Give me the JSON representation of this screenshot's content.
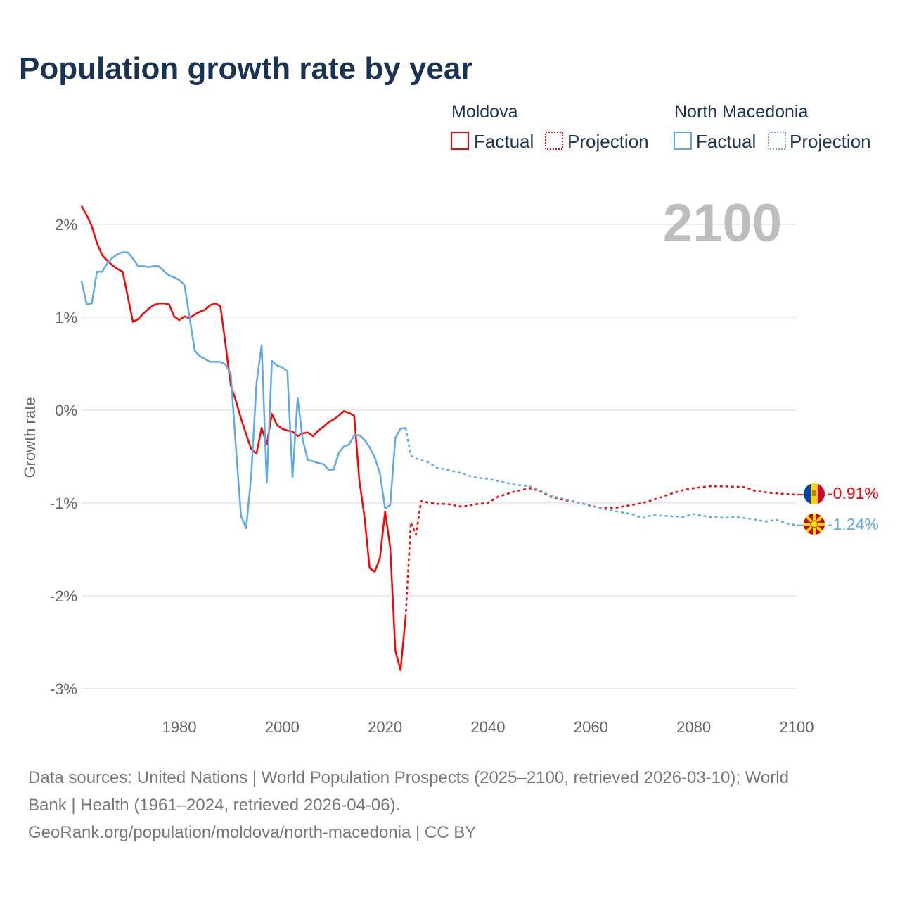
{
  "title": "Population growth rate by year",
  "legend": {
    "groups": [
      {
        "country": "Moldova",
        "factual": "Factual",
        "projection": "Projection",
        "color": "#ff0000"
      },
      {
        "country": "North Macedonia",
        "factual": "Factual",
        "projection": "Projection",
        "color": "#5ea8ec"
      }
    ]
  },
  "year_display": "2100",
  "footer": {
    "line1": "Data sources: United Nations | World Population Prospects (2025–2100, retrieved 2026-03-10); World",
    "line2": "Bank | Health (1961–2024, retrieved 2026-04-06).",
    "line3": "GeoRank.org/population/moldova/north-macedonia | CC BY"
  },
  "chart_data": {
    "type": "line",
    "title": "Population growth rate by year",
    "xlabel": "",
    "ylabel": "Growth rate",
    "xlim": [
      1961,
      2100
    ],
    "ylim": [
      -3.2,
      2.3
    ],
    "x_ticks": [
      1980,
      2000,
      2020,
      2040,
      2060,
      2080,
      2100
    ],
    "x_tick_labels": [
      "1980",
      "2000",
      "2020",
      "2040",
      "2060",
      "2080",
      "2100"
    ],
    "y_ticks": [
      2,
      1,
      0,
      -1,
      -2,
      -3
    ],
    "y_tick_labels": [
      "2%",
      "1%",
      "0%",
      "-1%",
      "-2%",
      "-3%"
    ],
    "grid": true,
    "legend_position": "top-right",
    "series": [
      {
        "name": "Moldova",
        "color": "#ff0000",
        "end_label": "-0.91%",
        "factual": {
          "x": [
            1961,
            1962,
            1963,
            1964,
            1965,
            1966,
            1967,
            1968,
            1969,
            1970,
            1971,
            1972,
            1973,
            1974,
            1975,
            1976,
            1977,
            1978,
            1979,
            1980,
            1981,
            1982,
            1983,
            1984,
            1985,
            1986,
            1987,
            1988,
            1989,
            1990,
            1991,
            1992,
            1993,
            1994,
            1995,
            1996,
            1997,
            1998,
            1999,
            2000,
            2001,
            2002,
            2003,
            2004,
            2005,
            2006,
            2007,
            2008,
            2009,
            2010,
            2011,
            2012,
            2013,
            2014,
            2015,
            2016,
            2017,
            2018,
            2019,
            2020,
            2021,
            2022,
            2023,
            2024
          ],
          "y": [
            2.2,
            2.1,
            1.98,
            1.8,
            1.67,
            1.61,
            1.56,
            1.52,
            1.49,
            1.22,
            0.95,
            0.98,
            1.04,
            1.09,
            1.13,
            1.15,
            1.15,
            1.14,
            1.01,
            0.97,
            1.01,
            0.99,
            1.03,
            1.06,
            1.08,
            1.13,
            1.15,
            1.12,
            0.7,
            0.27,
            0.1,
            -0.09,
            -0.26,
            -0.42,
            -0.47,
            -0.19,
            -0.37,
            -0.04,
            -0.16,
            -0.2,
            -0.22,
            -0.23,
            -0.28,
            -0.25,
            -0.24,
            -0.28,
            -0.22,
            -0.18,
            -0.13,
            -0.1,
            -0.06,
            -0.01,
            -0.03,
            -0.06,
            -0.76,
            -1.15,
            -1.7,
            -1.74,
            -1.59,
            -1.09,
            -1.48,
            -2.59,
            -2.8,
            -2.23
          ]
        },
        "projection": {
          "x": [
            2024,
            2025,
            2026,
            2027,
            2028,
            2030,
            2032,
            2035,
            2038,
            2040,
            2042,
            2045,
            2048,
            2050,
            2052,
            2055,
            2058,
            2060,
            2062,
            2065,
            2068,
            2070,
            2072,
            2075,
            2078,
            2080,
            2083,
            2086,
            2090,
            2092,
            2095,
            2097,
            2100
          ],
          "y": [
            -2.23,
            -1.21,
            -1.34,
            -0.98,
            -0.99,
            -1.01,
            -1.01,
            -1.04,
            -1.01,
            -1.0,
            -0.93,
            -0.88,
            -0.84,
            -0.87,
            -0.93,
            -0.97,
            -1.0,
            -1.03,
            -1.05,
            -1.05,
            -1.02,
            -1.0,
            -0.97,
            -0.91,
            -0.86,
            -0.84,
            -0.82,
            -0.82,
            -0.83,
            -0.87,
            -0.89,
            -0.9,
            -0.91
          ]
        }
      },
      {
        "name": "North Macedonia",
        "color": "#5ea8ec",
        "end_label": "-1.24%",
        "factual": {
          "x": [
            1961,
            1962,
            1963,
            1964,
            1965,
            1966,
            1967,
            1968,
            1969,
            1970,
            1971,
            1972,
            1973,
            1974,
            1975,
            1976,
            1977,
            1978,
            1979,
            1980,
            1981,
            1982,
            1983,
            1984,
            1985,
            1986,
            1987,
            1988,
            1989,
            1990,
            1991,
            1992,
            1993,
            1994,
            1995,
            1996,
            1997,
            1998,
            1999,
            2000,
            2001,
            2002,
            2003,
            2004,
            2005,
            2006,
            2007,
            2008,
            2009,
            2010,
            2011,
            2012,
            2013,
            2014,
            2015,
            2016,
            2017,
            2018,
            2019,
            2020,
            2021,
            2022,
            2023,
            2024
          ],
          "y": [
            1.39,
            1.14,
            1.15,
            1.49,
            1.49,
            1.58,
            1.64,
            1.68,
            1.7,
            1.7,
            1.63,
            1.55,
            1.55,
            1.54,
            1.55,
            1.55,
            1.5,
            1.45,
            1.43,
            1.4,
            1.35,
            1.0,
            0.64,
            0.58,
            0.55,
            0.52,
            0.52,
            0.52,
            0.49,
            0.39,
            -0.4,
            -1.14,
            -1.27,
            -0.7,
            0.29,
            0.7,
            -0.78,
            0.53,
            0.48,
            0.46,
            0.42,
            -0.72,
            0.13,
            -0.32,
            -0.54,
            -0.55,
            -0.57,
            -0.58,
            -0.64,
            -0.64,
            -0.46,
            -0.39,
            -0.37,
            -0.27,
            -0.27,
            -0.32,
            -0.4,
            -0.51,
            -0.68,
            -1.06,
            -1.02,
            -0.3,
            -0.2,
            -0.19
          ]
        },
        "projection": {
          "x": [
            2024,
            2025,
            2026,
            2027,
            2028,
            2029,
            2030,
            2032,
            2035,
            2037,
            2040,
            2045,
            2048,
            2050,
            2052,
            2055,
            2058,
            2060,
            2063,
            2065,
            2068,
            2070,
            2072,
            2075,
            2078,
            2080,
            2083,
            2086,
            2088,
            2091,
            2094,
            2096,
            2098,
            2100
          ],
          "y": [
            -0.19,
            -0.49,
            -0.52,
            -0.54,
            -0.55,
            -0.58,
            -0.62,
            -0.64,
            -0.68,
            -0.72,
            -0.74,
            -0.8,
            -0.82,
            -0.86,
            -0.92,
            -0.96,
            -1.0,
            -1.03,
            -1.07,
            -1.09,
            -1.12,
            -1.16,
            -1.13,
            -1.14,
            -1.15,
            -1.12,
            -1.15,
            -1.16,
            -1.15,
            -1.17,
            -1.2,
            -1.18,
            -1.22,
            -1.24
          ]
        }
      }
    ]
  }
}
